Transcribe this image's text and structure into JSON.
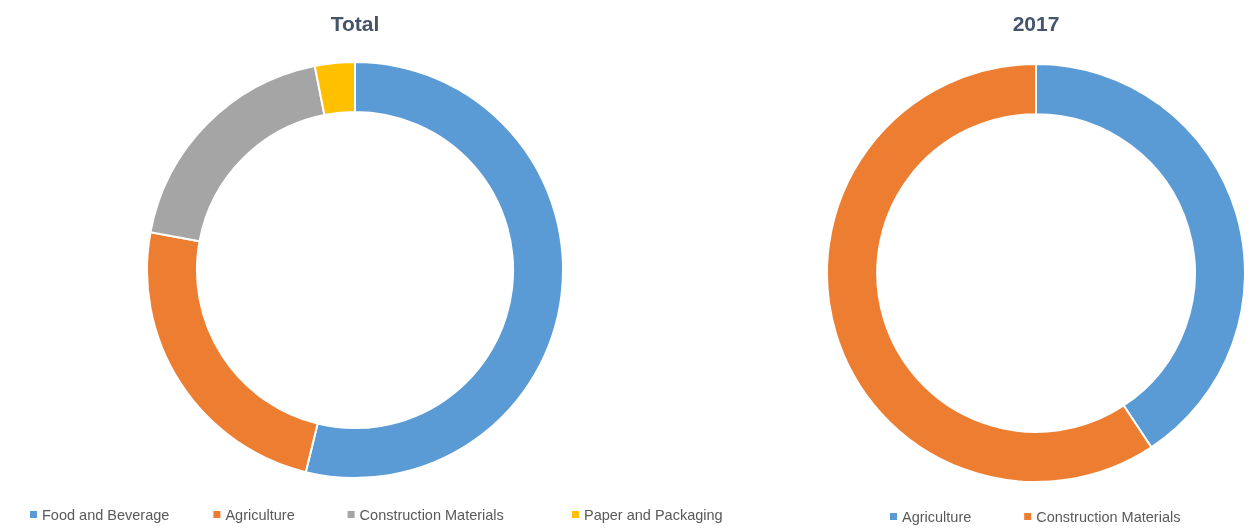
{
  "chart_data": [
    {
      "type": "donut",
      "title": "Total",
      "categories": [
        "Food and Beverage",
        "Agriculture",
        "Construction Materials",
        "Paper and Packaging"
      ],
      "values": [
        53.8,
        24.1,
        19,
        3.1
      ],
      "colors": [
        "#5b9bd5",
        "#ed7d31",
        "#a5a5a5",
        "#ffc000"
      ],
      "legend": "bottom"
    },
    {
      "type": "donut",
      "title": "2017",
      "categories": [
        "Agriculture",
        "Construction Materials"
      ],
      "values": [
        40.7,
        59.3
      ],
      "colors": [
        "#5b9bd5",
        "#ed7d31"
      ],
      "legend": "bottom"
    }
  ]
}
